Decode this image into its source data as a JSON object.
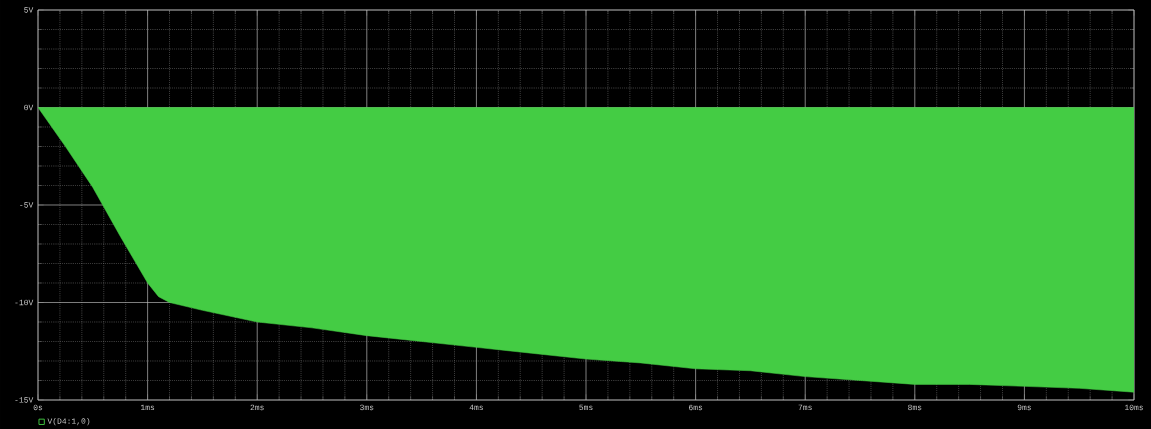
{
  "chart_data": {
    "type": "area",
    "x": [
      0,
      0.25,
      0.5,
      0.75,
      1.0,
      1.1,
      1.2,
      1.5,
      2.0,
      2.5,
      3.0,
      3.5,
      4.0,
      4.5,
      5.0,
      5.5,
      6.0,
      6.5,
      7.0,
      7.5,
      8.0,
      8.5,
      9.0,
      9.5,
      10.0
    ],
    "series": [
      {
        "name": "V(D4:1,0)",
        "color": "#44cc44",
        "values": [
          0,
          -2.0,
          -4.1,
          -6.6,
          -9.0,
          -9.7,
          -10.0,
          -10.4,
          -11.0,
          -11.3,
          -11.7,
          -12.0,
          -12.3,
          -12.6,
          -12.9,
          -13.1,
          -13.4,
          -13.5,
          -13.8,
          -14.0,
          -14.2,
          -14.2,
          -14.3,
          -14.4,
          -14.6
        ]
      }
    ],
    "xlim": [
      0,
      10
    ],
    "ylim": [
      -15,
      5
    ],
    "xticks": [
      {
        "value": 0,
        "label": "0s"
      },
      {
        "value": 1,
        "label": "1ms"
      },
      {
        "value": 2,
        "label": "2ms"
      },
      {
        "value": 3,
        "label": "3ms"
      },
      {
        "value": 4,
        "label": "4ms"
      },
      {
        "value": 5,
        "label": "5ms"
      },
      {
        "value": 6,
        "label": "6ms"
      },
      {
        "value": 7,
        "label": "7ms"
      },
      {
        "value": 8,
        "label": "8ms"
      },
      {
        "value": 9,
        "label": "9ms"
      },
      {
        "value": 10,
        "label": "10ms"
      }
    ],
    "yticks": [
      {
        "value": -15,
        "label": "-15V"
      },
      {
        "value": -10,
        "label": "-10V"
      },
      {
        "value": -5,
        "label": "-5V"
      },
      {
        "value": 0,
        "label": "0V"
      },
      {
        "value": 5,
        "label": "5V"
      }
    ],
    "grid": true,
    "legend": "bottom left"
  }
}
